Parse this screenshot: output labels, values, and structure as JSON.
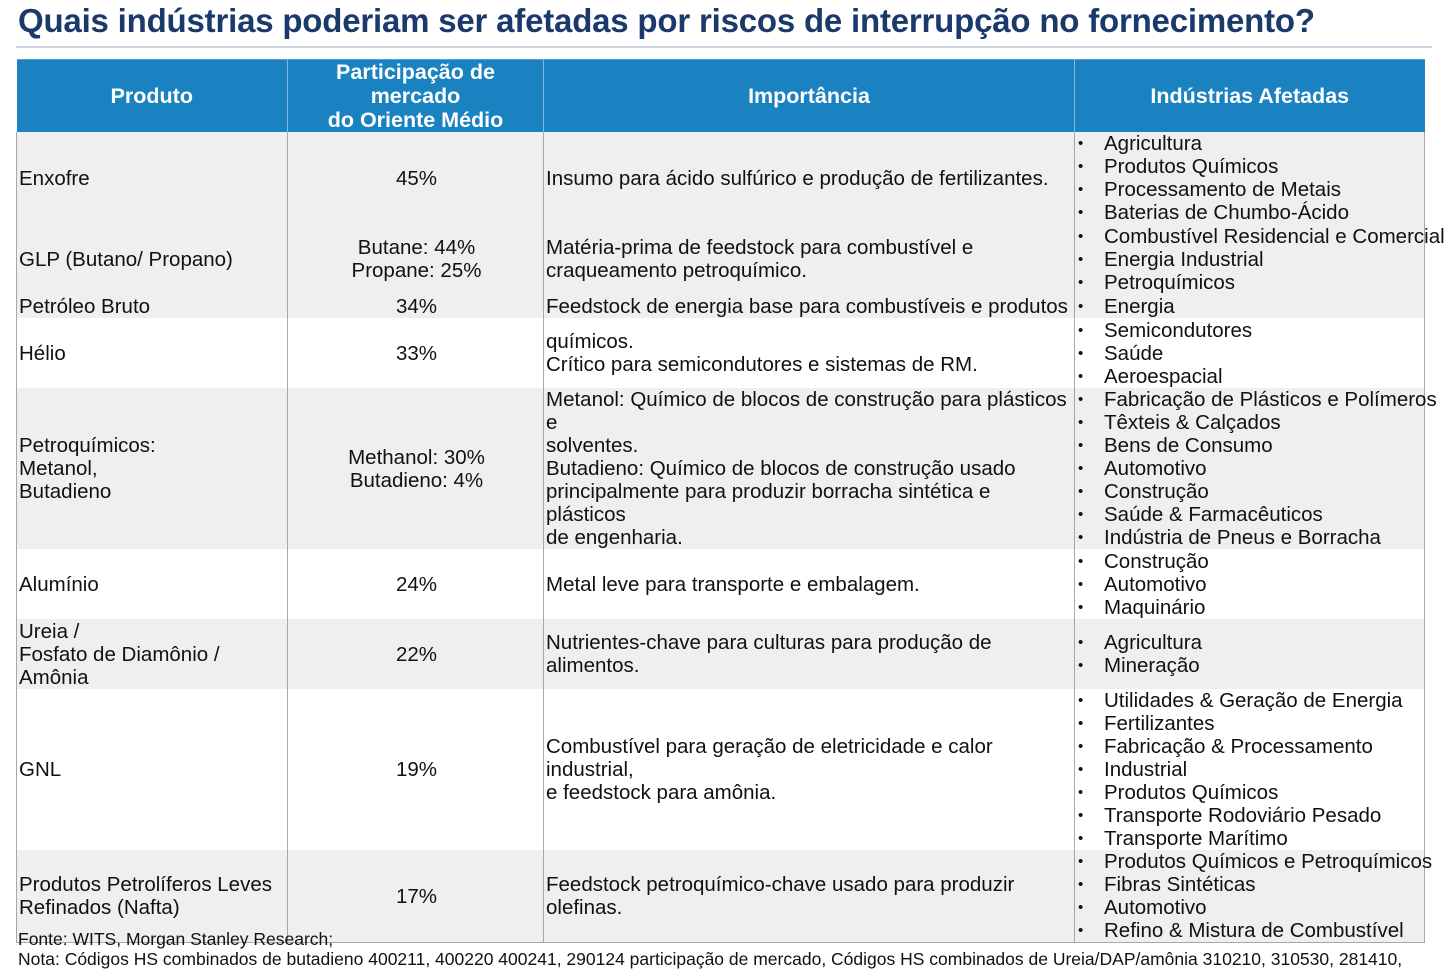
{
  "title": "Quais indústrias poderiam ser afetadas por riscos de interrupção no fornecimento?",
  "headers": {
    "product": "Produto",
    "share_line1": "Participação de mercado",
    "share_line2": "do Oriente Médio",
    "importance": "Importância",
    "industries": "Indústrias Afetadas"
  },
  "rows": [
    {
      "product": [
        "Enxofre"
      ],
      "share": [
        "45%"
      ],
      "importance": [
        "Insumo para ácido sulfúrico e produção de fertilizantes."
      ],
      "industries": [
        "Agricultura",
        "Produtos Químicos",
        "Processamento de Metais",
        "Baterias de Chumbo-Ácido"
      ]
    },
    {
      "product": [
        "GLP (Butano/ Propano)"
      ],
      "share": [
        "Butane: 44%",
        "Propane: 25%"
      ],
      "importance": [
        "Matéria-prima de feedstock para combustível e",
        "craqueamento petroquímico."
      ],
      "industries": [
        "Combustível Residencial e Comercial",
        "Energia Industrial",
        "Petroquímicos"
      ]
    },
    {
      "product": [
        "Petróleo Bruto"
      ],
      "share": [
        "34%"
      ],
      "importance": [
        "Feedstock de energia base para combustíveis e produtos"
      ],
      "industries": [
        "Energia"
      ]
    },
    {
      "product": [
        "Hélio"
      ],
      "share": [
        "33%"
      ],
      "importance": [
        "químicos.",
        "Crítico para semicondutores e sistemas de RM."
      ],
      "industries": [
        "Semicondutores",
        "Saúde",
        "Aeroespacial"
      ]
    },
    {
      "product": [
        "Petroquímicos:",
        "Metanol,",
        "Butadieno"
      ],
      "share": [
        "Methanol: 30%",
        "Butadieno: 4%"
      ],
      "importance": [
        "Metanol: Químico de blocos de construção para plásticos e",
        "solventes.",
        "Butadieno: Químico de blocos de construção usado",
        "principalmente para produzir borracha sintética e plásticos",
        "de engenharia."
      ],
      "industries": [
        "Fabricação de Plásticos e Polímeros",
        "Têxteis & Calçados",
        "Bens de Consumo",
        "Automotivo",
        "Construção",
        "Saúde & Farmacêuticos",
        "Indústria de Pneus e Borracha"
      ]
    },
    {
      "product": [
        "Alumínio"
      ],
      "share": [
        "24%"
      ],
      "importance": [
        "Metal leve para transporte e embalagem."
      ],
      "industries": [
        "Construção",
        "Automotivo",
        "Maquinário"
      ]
    },
    {
      "product": [
        "Ureia /",
        "Fosfato de Diamônio /",
        "Amônia"
      ],
      "share": [
        "22%"
      ],
      "importance": [
        "Nutrientes-chave para culturas para produção de alimentos."
      ],
      "industries": [
        "Agricultura",
        "Mineração"
      ]
    },
    {
      "product": [
        "GNL"
      ],
      "share": [
        "19%"
      ],
      "importance": [
        "Combustível para geração de eletricidade e calor industrial,",
        "e feedstock para amônia."
      ],
      "industries": [
        "Utilidades & Geração de Energia",
        "Fertilizantes",
        "Fabricação & Processamento",
        "Industrial",
        "Produtos Químicos",
        "Transporte Rodoviário Pesado",
        "Transporte Marítimo"
      ]
    },
    {
      "product": [
        "Produtos Petrolíferos Leves",
        "Refinados (Nafta)"
      ],
      "share": [
        "17%"
      ],
      "importance": [
        "Feedstock petroquímico-chave usado para produzir olefinas."
      ],
      "industries": [
        "Produtos Químicos e Petroquímicos",
        "Fibras Sintéticas",
        "Automotivo",
        "Refino & Mistura de Combustível"
      ]
    }
  ],
  "footer": {
    "source": "Fonte: WITS, Morgan Stanley Research;",
    "note": "Nota: Códigos HS combinados de butadieno 400211, 400220 400241, 290124 participação de mercado, Códigos HS combinados de Ureia/DAP/amônia 310210, 310530, 281410,"
  }
}
